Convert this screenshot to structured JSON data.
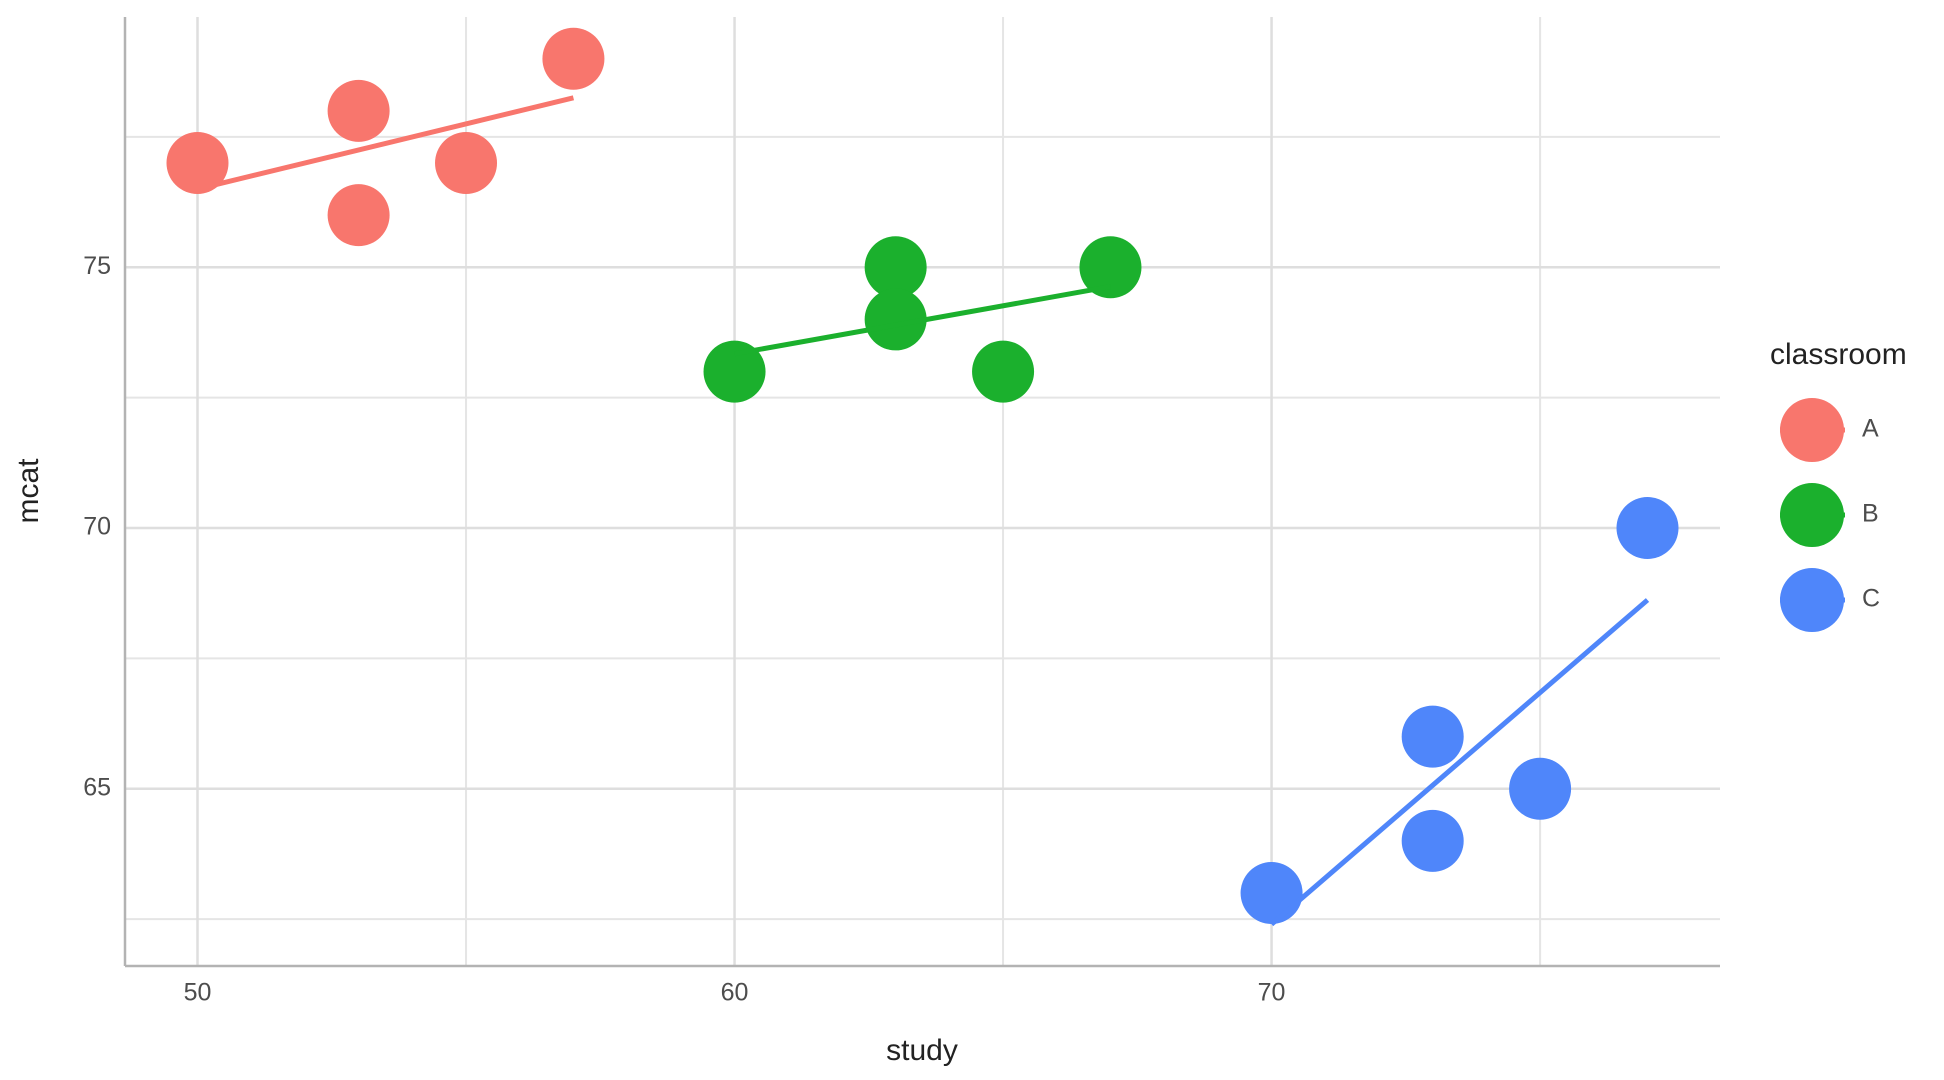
{
  "chart_data": {
    "type": "scatter",
    "x_label": "study",
    "y_label": "mcat",
    "xlim": [
      48.65,
      78.35
    ],
    "ylim": [
      61.6,
      79.8
    ],
    "xticks": [
      50,
      60,
      70
    ],
    "yticks": [
      65,
      70,
      75
    ],
    "xminor": [
      55,
      65,
      75
    ],
    "yminor": [
      62.5,
      67.5,
      72.5,
      77.5
    ],
    "grid": true,
    "legend_title": "classroom",
    "legend": "right",
    "series": [
      {
        "name": "A",
        "color": "#f8766d",
        "x": [
          50,
          53,
          53,
          55,
          57
        ],
        "values": [
          77,
          78,
          76,
          77,
          79
        ],
        "fit": {
          "x": [
            50,
            57
          ],
          "values": [
            76.5,
            78.25
          ]
        }
      },
      {
        "name": "B",
        "color": "#1bb02d",
        "x": [
          60,
          63,
          63,
          65,
          67
        ],
        "values": [
          73,
          75,
          74,
          73,
          75
        ],
        "fit": {
          "x": [
            60,
            67
          ],
          "values": [
            73.34,
            74.63
          ]
        }
      },
      {
        "name": "C",
        "color": "#4f86fa",
        "x": [
          70,
          73,
          73,
          75,
          77
        ],
        "values": [
          63,
          66,
          64,
          65,
          70
        ],
        "fit": {
          "x": [
            70,
            77
          ],
          "values": [
            62.4,
            68.62
          ]
        }
      }
    ]
  }
}
